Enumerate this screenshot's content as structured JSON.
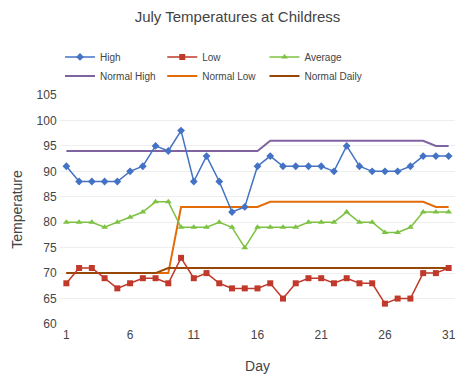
{
  "chart_data": {
    "type": "line",
    "title": "July Temperatures at Childress",
    "x_label": "Day",
    "y_label": "Temperature",
    "x": [
      1,
      2,
      3,
      4,
      5,
      6,
      7,
      8,
      9,
      10,
      11,
      12,
      13,
      14,
      15,
      16,
      17,
      18,
      19,
      20,
      21,
      22,
      23,
      24,
      25,
      26,
      27,
      28,
      29,
      30,
      31
    ],
    "series": [
      {
        "name": "High",
        "color": "#4472c4",
        "marker": "diamond",
        "values": [
          91,
          88,
          88,
          88,
          88,
          90,
          91,
          95,
          94,
          98,
          88,
          93,
          88,
          82,
          83,
          91,
          93,
          91,
          91,
          91,
          91,
          90,
          95,
          91,
          90,
          90,
          90,
          91,
          93,
          93,
          93
        ]
      },
      {
        "name": "Low",
        "color": "#c0392b",
        "marker": "square",
        "values": [
          68,
          71,
          71,
          69,
          67,
          68,
          69,
          69,
          68,
          73,
          69,
          70,
          68,
          67,
          67,
          67,
          68,
          65,
          68,
          69,
          69,
          68,
          69,
          68,
          68,
          64,
          65,
          65,
          70,
          70,
          71
        ]
      },
      {
        "name": "Average",
        "color": "#7dc242",
        "marker": "triangle-up",
        "values": [
          80,
          80,
          80,
          79,
          80,
          81,
          82,
          84,
          84,
          79,
          79,
          79,
          80,
          79,
          75,
          79,
          79,
          79,
          79,
          80,
          80,
          80,
          82,
          80,
          80,
          78,
          78,
          79,
          82,
          82,
          82
        ]
      },
      {
        "name": "Normal High",
        "color": "#8064a2",
        "values": [
          94,
          94,
          94,
          94,
          94,
          94,
          94,
          94,
          94,
          94,
          94,
          94,
          94,
          94,
          94,
          94,
          96,
          96,
          96,
          96,
          96,
          96,
          96,
          96,
          96,
          96,
          96,
          96,
          96,
          95,
          95
        ]
      },
      {
        "name": "Normal Low",
        "color": "#e36c09",
        "values": [
          70,
          70,
          70,
          70,
          70,
          70,
          70,
          70,
          70,
          83,
          83,
          83,
          83,
          83,
          83,
          83,
          84,
          84,
          84,
          84,
          84,
          84,
          84,
          84,
          84,
          84,
          84,
          84,
          84,
          83,
          83
        ]
      },
      {
        "name": "Normal Daily",
        "color": "#974706",
        "values": [
          70,
          70,
          70,
          70,
          70,
          70,
          70,
          70,
          71,
          71,
          71,
          71,
          71,
          71,
          71,
          71,
          71,
          71,
          71,
          71,
          71,
          71,
          71,
          71,
          71,
          71,
          71,
          71,
          71,
          71,
          71
        ]
      }
    ],
    "xlim": [
      0.5,
      31.5
    ],
    "xticks": [
      1,
      6,
      11,
      16,
      21,
      26,
      31
    ],
    "ylim": [
      60,
      105
    ],
    "yticks": [
      60,
      65,
      70,
      75,
      80,
      85,
      90,
      95,
      100,
      105
    ],
    "grid": "y",
    "legend": "top"
  }
}
